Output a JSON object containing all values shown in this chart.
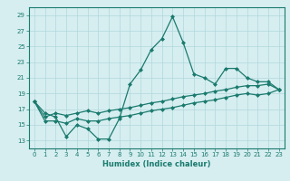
{
  "title": "",
  "xlabel": "Humidex (Indice chaleur)",
  "ylabel": "",
  "background_color": "#d6eef0",
  "line_color": "#1a7a6e",
  "grid_color": "#b0d8dc",
  "xlim": [
    -0.5,
    23.5
  ],
  "ylim": [
    12,
    30
  ],
  "yticks": [
    13,
    15,
    17,
    19,
    21,
    23,
    25,
    27,
    29
  ],
  "xticks": [
    0,
    1,
    2,
    3,
    4,
    5,
    6,
    7,
    8,
    9,
    10,
    11,
    12,
    13,
    14,
    15,
    16,
    17,
    18,
    19,
    20,
    21,
    22,
    23
  ],
  "series": [
    [
      18.0,
      16.5,
      16.0,
      13.5,
      15.0,
      14.5,
      13.2,
      13.2,
      15.8,
      20.2,
      22.0,
      24.6,
      26.0,
      28.8,
      25.5,
      21.5,
      21.0,
      20.2,
      22.2,
      22.2,
      21.0,
      20.5,
      20.5,
      19.5
    ],
    [
      18.0,
      16.0,
      16.5,
      16.2,
      16.5,
      16.8,
      16.5,
      16.8,
      17.0,
      17.2,
      17.5,
      17.8,
      18.0,
      18.3,
      18.6,
      18.8,
      19.0,
      19.3,
      19.5,
      19.8,
      20.0,
      20.0,
      20.2,
      19.5
    ],
    [
      18.0,
      15.5,
      15.5,
      15.2,
      15.8,
      15.5,
      15.5,
      15.8,
      16.0,
      16.2,
      16.5,
      16.8,
      17.0,
      17.2,
      17.5,
      17.8,
      18.0,
      18.2,
      18.5,
      18.8,
      19.0,
      18.8,
      19.0,
      19.5
    ]
  ],
  "xlabel_fontsize": 6,
  "tick_fontsize": 5,
  "marker": "D",
  "markersize": 2.0,
  "linewidth": 0.9
}
